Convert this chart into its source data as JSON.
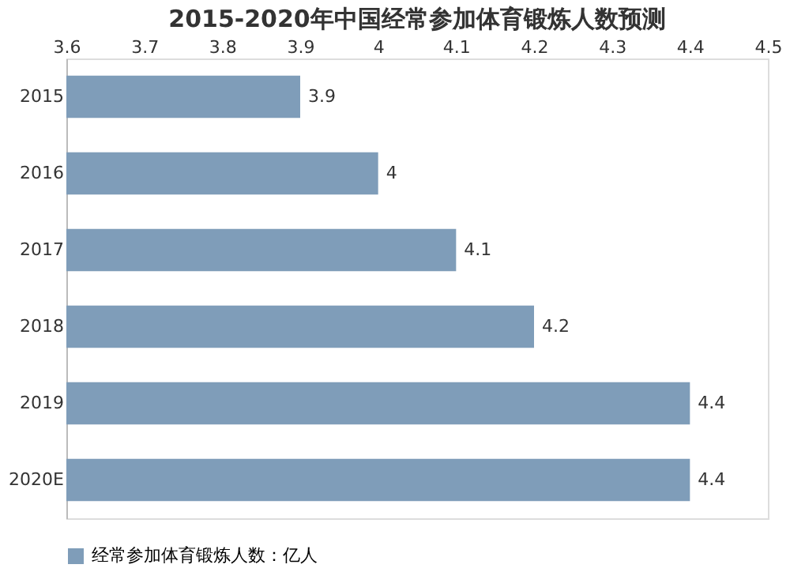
{
  "chart_data": {
    "type": "bar",
    "orientation": "horizontal",
    "title": "2015-2020年中国经常参加体育锻炼人数预测",
    "categories": [
      "2015",
      "2016",
      "2017",
      "2018",
      "2019",
      "2020E"
    ],
    "series": [
      {
        "name": "经常参加体育锻炼人数：亿人",
        "color": "#7f9db9",
        "values": [
          3.9,
          4,
          4.1,
          4.2,
          4.4,
          4.4
        ]
      }
    ],
    "xlim": [
      3.6,
      4.5
    ],
    "xticks": [
      3.6,
      3.7,
      3.8,
      3.9,
      4,
      4.1,
      4.2,
      4.3,
      4.4,
      4.5
    ],
    "data_labels": true,
    "grid": false,
    "legend": "bottom"
  }
}
